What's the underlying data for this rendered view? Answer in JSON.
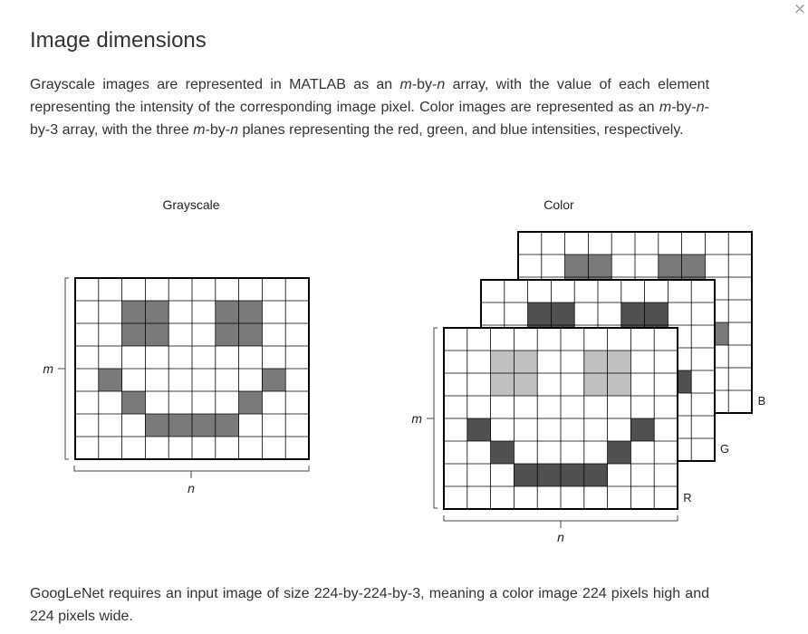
{
  "dialog": {
    "close_icon": "close-icon",
    "close_glyph": "×",
    "title": "Image dimensions"
  },
  "intro": {
    "s1": "Grayscale images are represented in MATLAB as an ",
    "s1_m": "m",
    "s1_dash": "-by-",
    "s1_n": "n",
    "s2": " array, with the value of each element representing the intensity of the corresponding image pixel. Color images are represented as an ",
    "s2_m": "m",
    "s2_dash": "-by-",
    "s2_n": "n",
    "s3": "-by-3 array, with the three ",
    "s3_m": "m",
    "s3_dash": "-by-",
    "s3_n": "n",
    "s4": " planes representing the red, green, and blue intensities, respectively."
  },
  "figure": {
    "grayscale_label": "Grayscale",
    "color_label": "Color",
    "m_label": "m",
    "n_label": "n",
    "plane_labels": [
      "R",
      "G",
      "B"
    ],
    "grid_rows": 8,
    "grid_cols": 10,
    "smiley_cells": [
      [
        1,
        2
      ],
      [
        1,
        3
      ],
      [
        1,
        6
      ],
      [
        1,
        7
      ],
      [
        2,
        2
      ],
      [
        2,
        3
      ],
      [
        2,
        6
      ],
      [
        2,
        7
      ],
      [
        4,
        1
      ],
      [
        4,
        8
      ],
      [
        5,
        2
      ],
      [
        5,
        7
      ],
      [
        6,
        3
      ],
      [
        6,
        4
      ],
      [
        6,
        5
      ],
      [
        6,
        6
      ]
    ],
    "colors": {
      "grayscale_fill": "#7a7a7a",
      "b_fill": "#7a7a7a",
      "g_fill": "#505050",
      "r_eyes_fill": "#c0c0c0",
      "r_mouth_fill": "#505050",
      "grid_line": "#000000"
    }
  },
  "outro": {
    "text": "GoogLeNet requires an input image of size 224-by-224-by-3, meaning a color image 224 pixels high and 224 pixels wide."
  }
}
